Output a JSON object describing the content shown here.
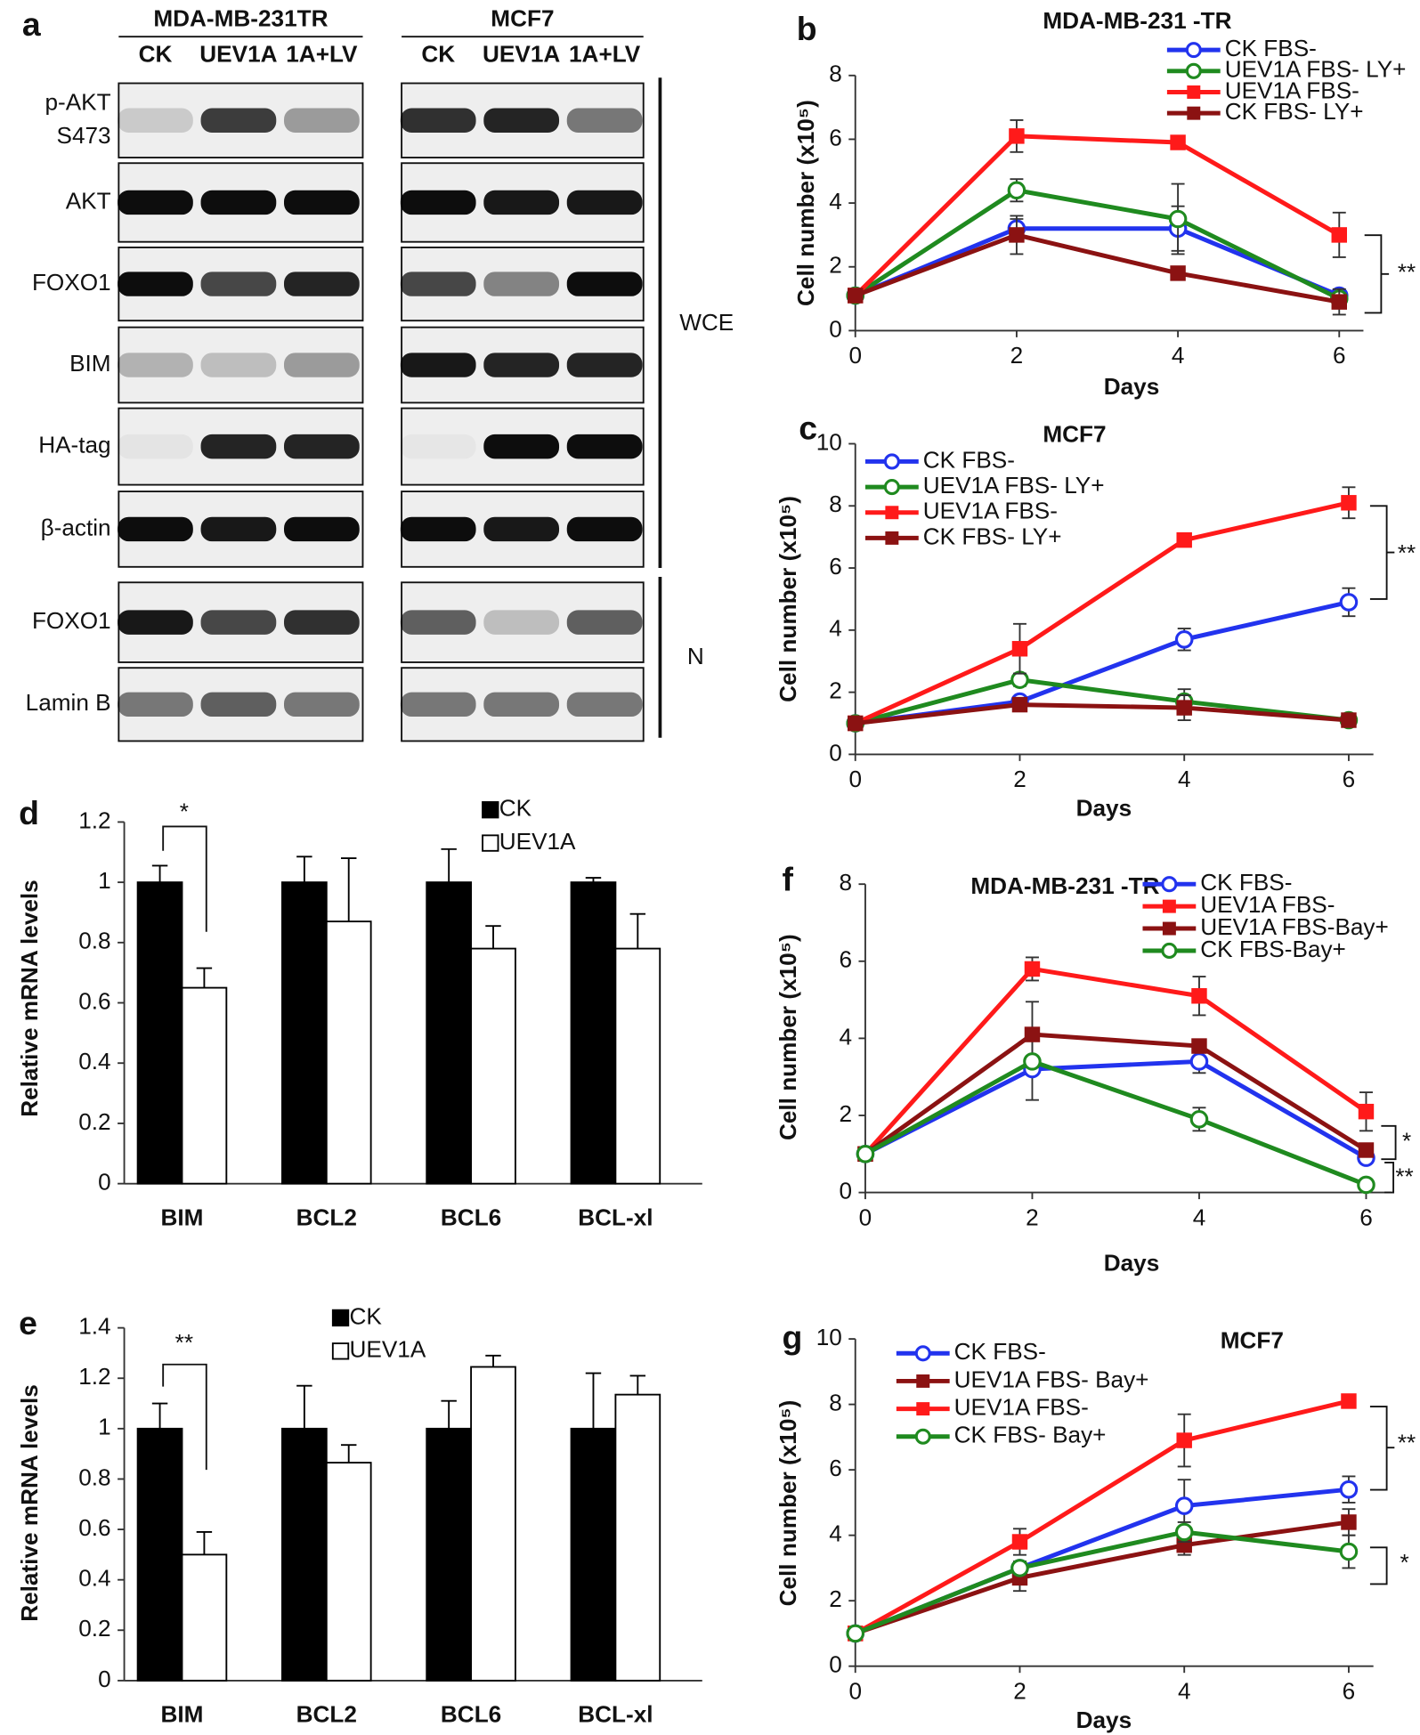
{
  "blot": {
    "panel": "a",
    "groups": [
      {
        "name": "MDA-MB-231TR",
        "lanes": [
          "CK",
          "UEV1A",
          "1A+LV"
        ]
      },
      {
        "name": "MCF7",
        "lanes": [
          "CK",
          "UEV1A",
          "1A+LV"
        ]
      }
    ],
    "rows": [
      {
        "lines": [
          "p-AKT",
          "S473"
        ]
      },
      {
        "lines": [
          "AKT"
        ]
      },
      {
        "lines": [
          "FOXO1"
        ]
      },
      {
        "lines": [
          "BIM"
        ]
      },
      {
        "lines": [
          "HA-tag"
        ]
      },
      {
        "lines": [
          "β-actin"
        ]
      },
      {
        "lines": [
          "FOXO1"
        ]
      },
      {
        "lines": [
          "Lamin B"
        ]
      }
    ],
    "fractions": [
      "WCE",
      "N"
    ]
  },
  "chart_data": [
    {
      "type": "line",
      "panel": "b",
      "title": "MDA-MB-231 -TR",
      "xlabel": "Days",
      "ylabel": "Cell number (x10⁵)",
      "xlim": [
        0,
        6.3
      ],
      "xticks": [
        0,
        2,
        4,
        6
      ],
      "ylim": [
        0,
        8
      ],
      "yticks": [
        0,
        2,
        4,
        6,
        8
      ],
      "x": [
        0,
        2,
        4,
        6
      ],
      "series": [
        {
          "name": "CK FBS-",
          "color": "#2233ee",
          "marker": "circle-open",
          "values": [
            1.1,
            3.2,
            3.2,
            1.1
          ],
          "errors": [
            0,
            0.3,
            0.7,
            0.1
          ]
        },
        {
          "name": "UEV1A FBS- LY+",
          "color": "#1f8a1f",
          "marker": "circle-open",
          "values": [
            1.1,
            4.4,
            3.5,
            1.0
          ],
          "errors": [
            0,
            0.35,
            1.1,
            0.1
          ]
        },
        {
          "name": "UEV1A FBS-",
          "color": "#ff1a1a",
          "marker": "square",
          "values": [
            1.1,
            6.1,
            5.9,
            3.0
          ],
          "errors": [
            0,
            0.5,
            0.1,
            0.7
          ]
        },
        {
          "name": "CK FBS- LY+",
          "color": "#8b1212",
          "marker": "square",
          "values": [
            1.1,
            3.0,
            1.8,
            0.9
          ],
          "errors": [
            0,
            0.6,
            0.1,
            0.4
          ]
        }
      ],
      "annotations": [
        "**"
      ]
    },
    {
      "type": "line",
      "panel": "c",
      "title": "MCF7",
      "xlabel": "Days",
      "ylabel": "Cell number (x10⁵)",
      "xlim": [
        0,
        6.3
      ],
      "xticks": [
        0,
        2,
        4,
        6
      ],
      "ylim": [
        0,
        10
      ],
      "yticks": [
        0,
        2,
        4,
        6,
        8,
        10
      ],
      "x": [
        0,
        2,
        4,
        6
      ],
      "series": [
        {
          "name": "CK FBS-",
          "color": "#2233ee",
          "marker": "circle-open",
          "values": [
            1,
            1.7,
            3.7,
            4.9
          ],
          "errors": [
            0,
            0,
            0.35,
            0.45
          ]
        },
        {
          "name": "UEV1A FBS- LY+",
          "color": "#1f8a1f",
          "marker": "circle-open",
          "values": [
            1,
            2.4,
            1.7,
            1.1
          ],
          "errors": [
            0,
            0.2,
            0.4,
            0.1
          ]
        },
        {
          "name": "UEV1A FBS-",
          "color": "#ff1a1a",
          "marker": "square",
          "values": [
            1,
            3.4,
            6.9,
            8.1
          ],
          "errors": [
            0,
            0.8,
            0.15,
            0.5
          ]
        },
        {
          "name": "CK FBS- LY+",
          "color": "#8b1212",
          "marker": "square",
          "values": [
            1,
            1.6,
            1.5,
            1.1
          ],
          "errors": [
            0,
            0.1,
            0.4,
            0.1
          ]
        }
      ],
      "annotations": [
        "**"
      ]
    },
    {
      "type": "bar",
      "panel": "d",
      "ylabel": "Relative mRNA levels",
      "categories": [
        "BIM",
        "BCL2",
        "BCL6",
        "BCL-xl"
      ],
      "ylim": [
        0,
        1.2
      ],
      "yticks": [
        0,
        0.2,
        0.4,
        0.6,
        0.8,
        1,
        1.2
      ],
      "series": [
        {
          "name": "CK",
          "color": "#000000",
          "values": [
            1,
            1,
            1,
            1
          ],
          "errors": [
            0.055,
            0.085,
            0.11,
            0.015
          ]
        },
        {
          "name": "UEV1A",
          "color": "#ffffff",
          "values": [
            0.65,
            0.87,
            0.78,
            0.78
          ],
          "errors": [
            0.065,
            0.21,
            0.075,
            0.115
          ]
        }
      ],
      "annotations": [
        "*"
      ]
    },
    {
      "type": "bar",
      "panel": "e",
      "ylabel": "Relative mRNA levels",
      "categories": [
        "BIM",
        "BCL2",
        "BCL6",
        "BCL-xl"
      ],
      "ylim": [
        0,
        1.4
      ],
      "yticks": [
        0,
        0.2,
        0.4,
        0.6,
        0.8,
        1,
        1.2,
        1.4
      ],
      "series": [
        {
          "name": "CK",
          "color": "#000000",
          "values": [
            1,
            1,
            1,
            1
          ],
          "errors": [
            0.1,
            0.17,
            0.11,
            0.22
          ]
        },
        {
          "name": "UEV1A",
          "color": "#ffffff",
          "values": [
            0.5,
            0.865,
            1.245,
            1.135
          ],
          "errors": [
            0.09,
            0.07,
            0.045,
            0.075
          ]
        }
      ],
      "annotations": [
        "**"
      ]
    },
    {
      "type": "line",
      "panel": "f",
      "title": "MDA-MB-231 -TR",
      "xlabel": "Days",
      "ylabel": "Cell number (x10⁵)",
      "xlim": [
        0,
        6.3
      ],
      "xticks": [
        0,
        2,
        4,
        6
      ],
      "ylim": [
        0,
        8
      ],
      "yticks": [
        0,
        2,
        4,
        6,
        8
      ],
      "x": [
        0,
        2,
        4,
        6
      ],
      "series": [
        {
          "name": "CK FBS-",
          "color": "#2233ee",
          "marker": "circle-open",
          "values": [
            1,
            3.2,
            3.4,
            0.9
          ],
          "errors": [
            0,
            0.8,
            0.3,
            0.1
          ]
        },
        {
          "name": "UEV1A FBS-",
          "color": "#ff1a1a",
          "marker": "square",
          "values": [
            1,
            5.8,
            5.1,
            2.1
          ],
          "errors": [
            0,
            0.3,
            0.5,
            0.5
          ]
        },
        {
          "name": "UEV1A FBS-Bay+",
          "color": "#8b1212",
          "marker": "square",
          "values": [
            1,
            4.1,
            3.8,
            1.1
          ],
          "errors": [
            0,
            0.85,
            0.15,
            0.1
          ]
        },
        {
          "name": "CK FBS-Bay+",
          "color": "#1f8a1f",
          "marker": "circle-open",
          "values": [
            1,
            3.4,
            1.9,
            0.2
          ],
          "errors": [
            0,
            0.1,
            0.3,
            0.05
          ]
        }
      ],
      "annotations": [
        "*",
        "**"
      ]
    },
    {
      "type": "line",
      "panel": "g",
      "title": "MCF7",
      "xlabel": "Days",
      "ylabel": "Cell number (x10⁵)",
      "xlim": [
        0,
        6.3
      ],
      "xticks": [
        0,
        2,
        4,
        6
      ],
      "ylim": [
        0,
        10
      ],
      "yticks": [
        0,
        2,
        4,
        6,
        8,
        10
      ],
      "x": [
        0,
        2,
        4,
        6
      ],
      "series": [
        {
          "name": "CK FBS-",
          "color": "#2233ee",
          "marker": "circle-open",
          "values": [
            1,
            3.0,
            4.9,
            5.4
          ],
          "errors": [
            0,
            0.2,
            0.8,
            0.4
          ]
        },
        {
          "name": "UEV1A FBS- Bay+",
          "color": "#8b1212",
          "marker": "square",
          "values": [
            1,
            2.7,
            3.7,
            4.4
          ],
          "errors": [
            0,
            0.4,
            0.3,
            0.4
          ]
        },
        {
          "name": "UEV1A FBS-",
          "color": "#ff1a1a",
          "marker": "square",
          "values": [
            1,
            3.8,
            6.9,
            8.1
          ],
          "errors": [
            0,
            0.4,
            0.8,
            0.2
          ]
        },
        {
          "name": "CK FBS- Bay+",
          "color": "#1f8a1f",
          "marker": "circle-open",
          "values": [
            1,
            3.0,
            4.1,
            3.5
          ],
          "errors": [
            0,
            0.2,
            0.3,
            0.5
          ]
        }
      ],
      "annotations": [
        "**",
        "*"
      ]
    }
  ]
}
